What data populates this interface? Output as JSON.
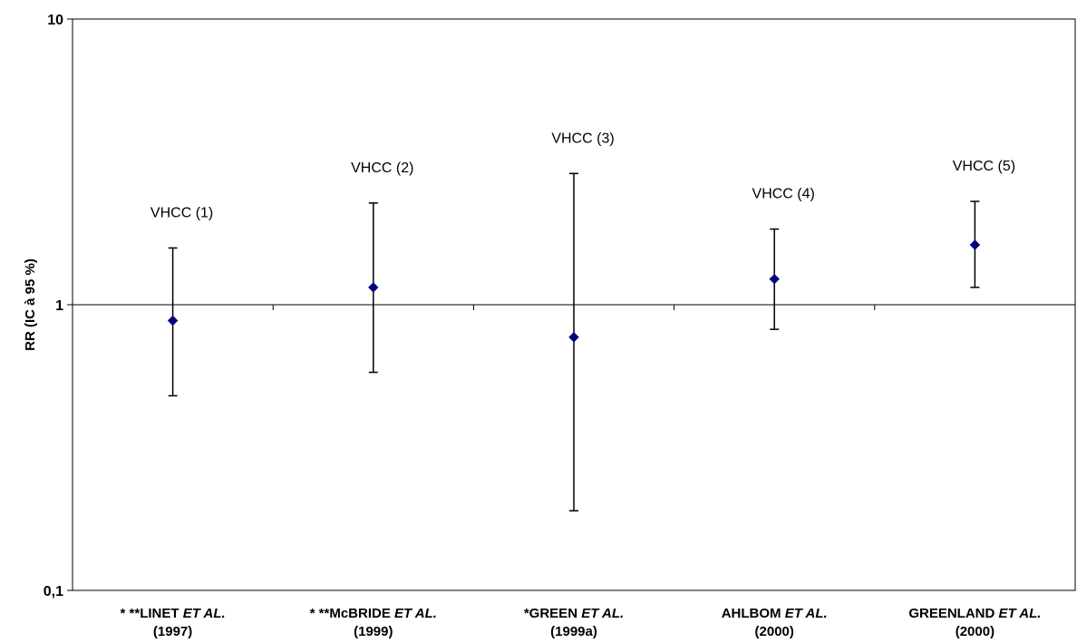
{
  "chart_data": {
    "type": "scatter",
    "ylabel": "RR (IC à 95 %)",
    "yscale": "log",
    "ylim": [
      0.1,
      10
    ],
    "y_tick_labels": [
      "0,1",
      "1",
      "10"
    ],
    "reference_line": 1,
    "grid": false,
    "marker_color": "#000080",
    "categories": [
      {
        "lines": [
          "* **LINET ",
          "ET AL.",
          "(1997)"
        ]
      },
      {
        "lines": [
          "* **McBRIDE ",
          "ET AL.",
          "(1999)"
        ]
      },
      {
        "lines": [
          "*GREEN ",
          "ET AL.",
          "(1999a)"
        ]
      },
      {
        "lines": [
          "AHLBOM ",
          "ET AL.",
          "(2000)"
        ]
      },
      {
        "lines": [
          "GREENLAND ",
          "ET AL.",
          "(2000)"
        ]
      }
    ],
    "points": [
      {
        "category": "* **LINET ET AL. (1997)",
        "rr": 0.88,
        "ci_low": 0.48,
        "ci_high": 1.58,
        "label": "VHCC (1)"
      },
      {
        "category": "* **McBRIDE ET AL. (1999)",
        "rr": 1.15,
        "ci_low": 0.58,
        "ci_high": 2.27,
        "label": "VHCC (2)"
      },
      {
        "category": "*GREEN ET AL. (1999a)",
        "rr": 0.77,
        "ci_low": 0.19,
        "ci_high": 2.88,
        "label": "VHCC (3)"
      },
      {
        "category": "AHLBOM ET AL. (2000)",
        "rr": 1.23,
        "ci_low": 0.82,
        "ci_high": 1.84,
        "label": "VHCC (4)"
      },
      {
        "category": "GREENLAND ET AL. (2000)",
        "rr": 1.62,
        "ci_low": 1.15,
        "ci_high": 2.3,
        "label": "VHCC (5)"
      }
    ]
  }
}
